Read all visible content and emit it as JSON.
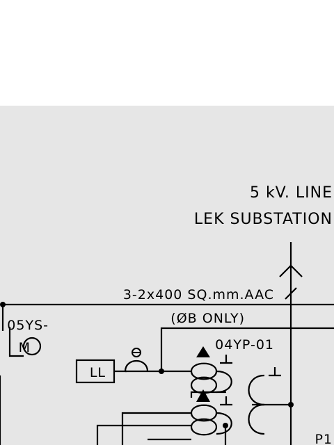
{
  "colors": {
    "canvas": "#e6e6e6",
    "top_band": "#ffffff",
    "ink": "#000000"
  },
  "labels": {
    "line_voltage": "5 kV. LINE",
    "substation": "LEK SUBSTATION",
    "conductor": "3-2x400 SQ.mm.AAC",
    "phase_note": "(ØB ONLY)",
    "transformer_id": "04YP-01",
    "motor_tag": "05YS-",
    "motor_letter": "M",
    "ll_box": "LL",
    "p1_label": "P1"
  }
}
